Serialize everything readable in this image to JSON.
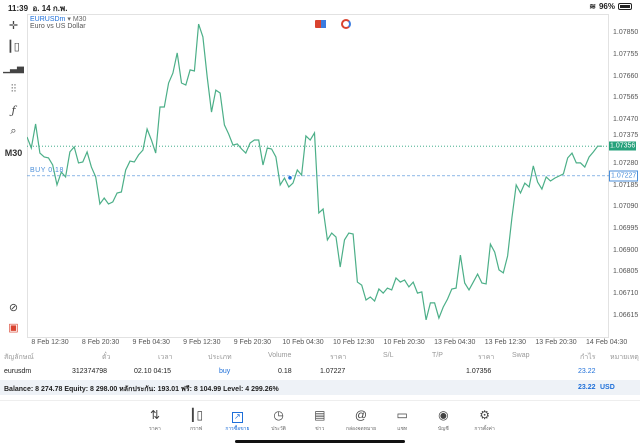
{
  "status": {
    "time": "11:39",
    "date": "อ. 14 ก.พ.",
    "battery": "96%",
    "battery_level": 0.96
  },
  "toolbar": {
    "items": [
      "crosshair-icon",
      "chart-type-icon",
      "indicators-icon",
      "settings-sliders-icon",
      "function-icon",
      "objects-icon"
    ],
    "timeframe": "M30"
  },
  "chart": {
    "symbol": "EURUSDm",
    "timeframe": "M30",
    "description": "Euro vs US Dollar",
    "line_color": "#4caf88",
    "bid_color": "#26a17b",
    "buy_line_color": "#4a8ed9",
    "y_ticks": [
      "1.07850",
      "1.07755",
      "1.07660",
      "1.07565",
      "1.07470",
      "1.07375",
      "1.07280",
      "1.07185",
      "1.07090",
      "1.06995",
      "1.06900",
      "1.06805",
      "1.06710",
      "1.06615"
    ],
    "x_ticks": [
      "8 Feb 12:30",
      "8 Feb 20:30",
      "9 Feb 04:30",
      "9 Feb 12:30",
      "9 Feb 20:30",
      "10 Feb 04:30",
      "10 Feb 12:30",
      "10 Feb 20:30",
      "13 Feb 04:30",
      "13 Feb 12:30",
      "13 Feb 20:30",
      "14 Feb 04:30"
    ],
    "current_price": "1.07356",
    "buy_price": "1.07227",
    "buy_label": "BUY 0.18",
    "prices": [
      1.07396,
      1.07348,
      1.07453,
      1.07326,
      1.07309,
      1.07305,
      1.07274,
      1.07187,
      1.07243,
      1.07222,
      1.07331,
      1.07353,
      1.07283,
      1.07287,
      1.07331,
      1.07265,
      1.07222,
      1.07104,
      1.0713,
      1.07104,
      1.07113,
      1.07152,
      1.07156,
      1.07252,
      1.07291,
      1.07287,
      1.07318,
      1.07339,
      1.07431,
      1.07383,
      1.07326,
      1.07527,
      1.07527,
      1.07632,
      1.07675,
      1.07763,
      1.07632,
      1.07623,
      1.07689,
      1.07684,
      1.07889,
      1.07833,
      1.07658,
      1.07505,
      1.07601,
      1.07588,
      1.07449,
      1.07409,
      1.07361,
      1.07366,
      1.07344,
      1.07326,
      1.0737,
      1.07383,
      1.07383,
      1.07274,
      1.07348,
      1.07344,
      1.07309,
      1.07187,
      1.07217,
      1.07178,
      1.07195,
      1.07252,
      1.0723,
      1.07401,
      1.07383,
      1.07414,
      1.07065,
      1.07082,
      1.06947,
      1.06977,
      1.0696,
      1.06829,
      1.06947,
      1.06977,
      1.06973,
      1.06763,
      1.0675,
      1.06685,
      1.06698,
      1.0668,
      1.06733,
      1.06715,
      1.06737,
      1.06729,
      1.06781,
      1.06763,
      1.06772,
      1.06742,
      1.06763,
      1.06715,
      1.0672,
      1.06598,
      1.06672,
      1.06672,
      1.06606,
      1.06654,
      1.06689,
      1.06733,
      1.06737,
      1.06881,
      1.06759,
      1.06729,
      1.06763,
      1.06798,
      1.06759,
      1.06755,
      1.06929,
      1.06894,
      1.06816,
      1.06803,
      1.06877,
      1.07043,
      1.07187,
      1.07152,
      1.07195,
      1.07178,
      1.0727,
      1.072,
      1.07169,
      1.07222,
      1.07204,
      1.07217,
      1.07226,
      1.07235,
      1.07305,
      1.07326,
      1.07283,
      1.07283,
      1.07265,
      1.07309,
      1.07331,
      1.07356,
      1.07356
    ]
  },
  "table": {
    "headers": [
      "สัญลักษณ์",
      "ตั๋ว",
      "เวลา",
      "ประเภท",
      "Volume",
      "ราคา",
      "S/L",
      "T/P",
      "ราคา",
      "Swap",
      "กำไร",
      "หมายเหตุ"
    ],
    "row": {
      "symbol": "eurusdm",
      "ticket": "312374798",
      "time": "02.10 04:15",
      "type": "buy",
      "volume": "0.18",
      "open_price": "1.07227",
      "sl": "",
      "tp": "",
      "price": "1.07356",
      "swap": "",
      "profit": "23.22",
      "comment": ""
    },
    "balance": "Balance: 8 274.78 Equity: 8 298.00 หลักประกัน: 193.01 ฟรี: 8 104.99 Level: 4 299.26%",
    "total_profit": "23.22",
    "currency": "USD"
  },
  "nav": [
    {
      "label": "ราคา",
      "icon": "quotes-icon"
    },
    {
      "label": "กราฟ",
      "icon": "chart-icon"
    },
    {
      "label": "การซื้อขาย",
      "icon": "trade-icon",
      "active": true
    },
    {
      "label": "ประวัติ",
      "icon": "history-icon"
    },
    {
      "label": "ข่าว",
      "icon": "news-icon"
    },
    {
      "label": "กล่องจดหมาย",
      "icon": "mailbox-icon"
    },
    {
      "label": "แชท",
      "icon": "chat-icon"
    },
    {
      "label": "บัญชี",
      "icon": "account-icon"
    },
    {
      "label": "การตั้งค่า",
      "icon": "settings-icon"
    }
  ]
}
